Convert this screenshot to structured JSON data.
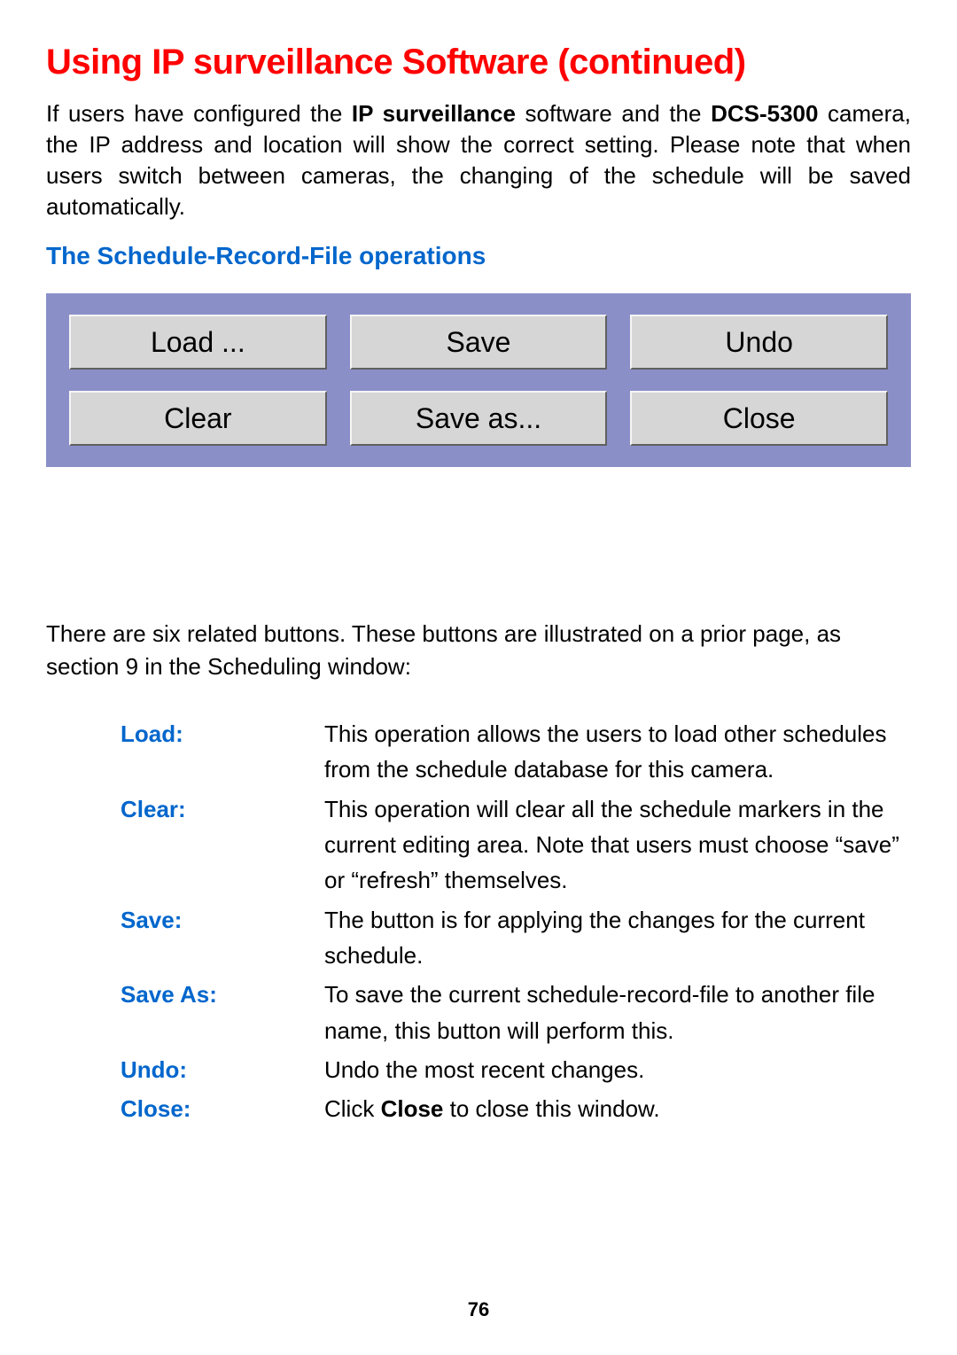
{
  "page": {
    "title": "Using IP surveillance Software (continued)",
    "intro_pre": "If users have configured the ",
    "intro_bold1": "IP surveillance",
    "intro_mid": " software  and the ",
    "intro_bold2": "DCS-5300",
    "intro_post": " camera, the IP address and location will show the correct setting. Please note that when users switch between cameras, the changing of the schedule will be saved automatically.",
    "subhead": "The Schedule-Record-File operations",
    "after_panel": "There are six related buttons. These buttons are illustrated on a prior page, as section 9 in the Scheduling window:",
    "page_number": "76"
  },
  "panel": {
    "background_color": "#8b8fc8",
    "button_bg": "#d6d6d6",
    "button_highlight": "#f5f5f5",
    "button_shadow": "#606060",
    "buttons": {
      "load": {
        "label": "Load ..."
      },
      "save": {
        "label": "Save"
      },
      "undo": {
        "label": "Undo"
      },
      "clear": {
        "label": "Clear"
      },
      "saveas": {
        "label": "Save as..."
      },
      "close": {
        "label": "Close"
      }
    }
  },
  "definitions": {
    "load": {
      "term": "Load:",
      "desc": "This operation allows the users to load other schedules from the schedule database for this camera."
    },
    "clear": {
      "term": "Clear:",
      "desc": "This operation will clear all the schedule markers in the current editing area. Note that users must choose “save” or “refresh” themselves."
    },
    "save": {
      "term": "Save:",
      "desc": "The button is for applying the changes for the current schedule."
    },
    "saveas": {
      "term": "Save As:",
      "desc": "To save the current schedule-record-file to another file name, this button will perform this."
    },
    "undo": {
      "term": "Undo:",
      "desc": "Undo the most recent changes."
    },
    "close": {
      "term": "Close:",
      "desc_pre": "Click ",
      "desc_bold": "Close",
      "desc_post": " to close this window."
    }
  },
  "colors": {
    "title": "#ff0000",
    "subhead": "#0066cc",
    "term": "#0066cc",
    "body": "#000000",
    "page_bg": "#ffffff"
  }
}
